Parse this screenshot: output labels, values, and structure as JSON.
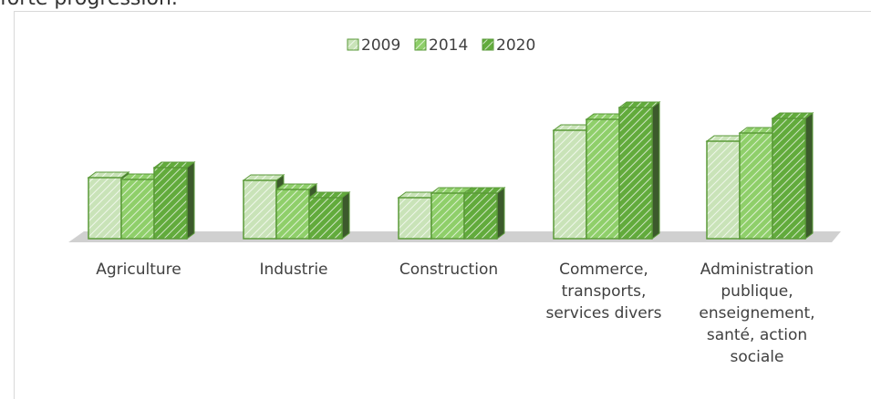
{
  "header_text": "forte progression.",
  "chart_data": {
    "type": "bar3d",
    "categories": [
      "Agriculture",
      "Industrie",
      "Construction",
      "Commerce, transports, services divers",
      "Administration publique, enseignement, santé, action sociale"
    ],
    "series": [
      {
        "name": "2009",
        "color": "#c9e3b8",
        "values": [
          67,
          64,
          45,
          119,
          107
        ]
      },
      {
        "name": "2014",
        "color": "#8fcf6a",
        "values": [
          65,
          54,
          50,
          131,
          116
        ]
      },
      {
        "name": "2020",
        "color": "#62ab3c",
        "values": [
          78,
          45,
          50,
          144,
          132
        ]
      }
    ],
    "legend": "top"
  }
}
